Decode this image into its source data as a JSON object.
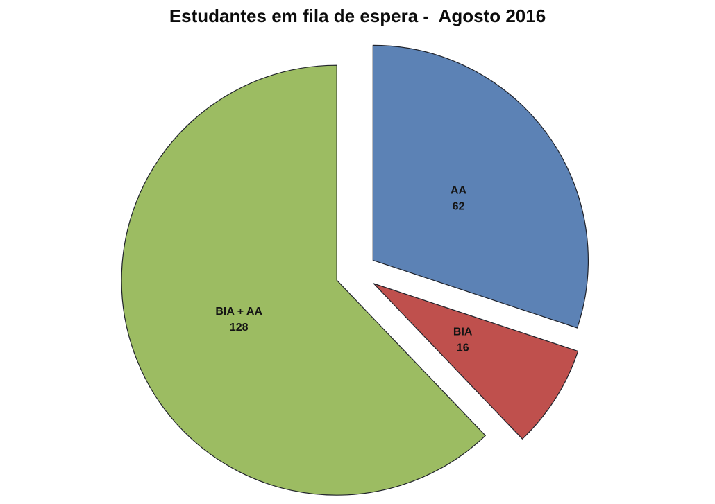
{
  "chart_data": {
    "type": "pie",
    "title": "Estudantes em fila de espera -  Agosto 2016",
    "categories": [
      "AA",
      "BIA",
      "BIA + AA"
    ],
    "values": [
      62,
      16,
      128
    ],
    "total": 206,
    "colors": [
      "#5C82B5",
      "#BF504D",
      "#9CBC62"
    ],
    "border_color": "#20232B",
    "background_color": "#FFFFFF",
    "data_labels": [
      {
        "name": "AA",
        "value": "62"
      },
      {
        "name": "BIA",
        "value": "16"
      },
      {
        "name": "BIA + AA",
        "value": "128"
      }
    ],
    "legend": "none",
    "start_angle_deg": 0,
    "direction": "clockwise",
    "exploded": true
  }
}
